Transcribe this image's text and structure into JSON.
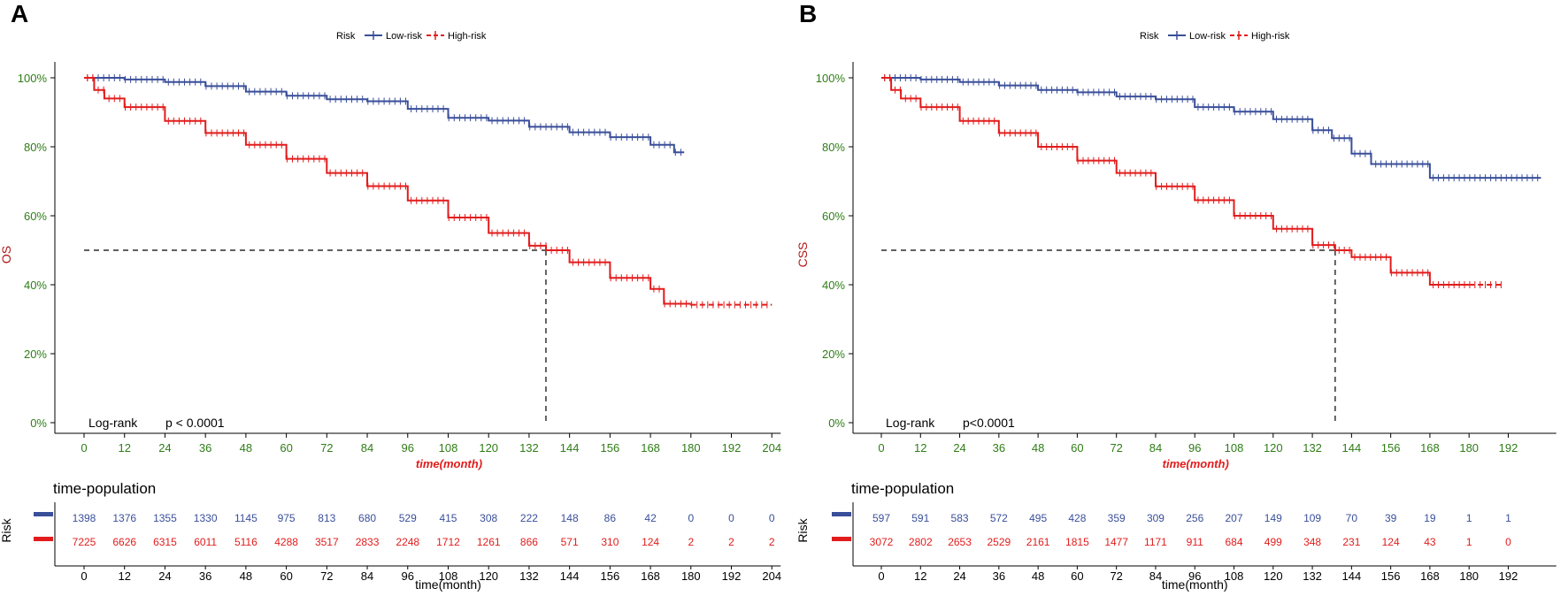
{
  "chart_data": [
    {
      "type": "line",
      "panel_label": "A",
      "legend_title": "Risk",
      "legend": [
        "Low-risk",
        "High-risk"
      ],
      "ylabel": "OS",
      "xlabel": "time(month)",
      "x_ticks": [
        0,
        12,
        24,
        36,
        48,
        60,
        72,
        84,
        96,
        108,
        120,
        132,
        144,
        156,
        168,
        180,
        192,
        204
      ],
      "y_ticks": [
        "0%",
        "20%",
        "40%",
        "60%",
        "80%",
        "100%"
      ],
      "xlim": [
        0,
        204
      ],
      "ylim": [
        0,
        100
      ],
      "median_time": 137,
      "annotation": {
        "test": "Log-rank",
        "p": "p < 0.0001"
      },
      "series": [
        {
          "name": "Low-risk",
          "color": "#3a4f9a",
          "x": [
            0,
            12,
            24,
            36,
            48,
            60,
            72,
            84,
            96,
            108,
            120,
            132,
            144,
            156,
            168,
            175,
            178
          ],
          "y": [
            100,
            99.5,
            98.8,
            97.6,
            96,
            94.8,
            93.8,
            93.2,
            91,
            88.4,
            87.6,
            85.8,
            84.2,
            82.8,
            80.6,
            78.4,
            78.4
          ]
        },
        {
          "name": "High-risk",
          "color": "#e21c1c",
          "x": [
            0,
            3,
            6,
            12,
            24,
            36,
            48,
            60,
            72,
            84,
            96,
            108,
            120,
            132,
            137,
            144,
            156,
            168,
            172,
            180,
            204
          ],
          "y": [
            100,
            96.5,
            94,
            91.5,
            87.5,
            84,
            80.6,
            76.5,
            72.4,
            68.6,
            64.4,
            59.5,
            55,
            51.3,
            50,
            46.5,
            42,
            38.8,
            34.5,
            34.2,
            34.2
          ]
        }
      ],
      "risk_table": {
        "title": "time-population",
        "ylabel": "Risk",
        "xlabel": "time(month)",
        "times": [
          0,
          12,
          24,
          36,
          48,
          60,
          72,
          84,
          96,
          108,
          120,
          132,
          144,
          156,
          168,
          180,
          192,
          204
        ],
        "low": [
          "1398",
          "1376",
          "1355",
          "1330",
          "1145",
          "975",
          "813",
          "680",
          "529",
          "415",
          "308",
          "222",
          "148",
          "86",
          "42",
          "0",
          "0",
          "0"
        ],
        "high": [
          "7225",
          "6626",
          "6315",
          "6011",
          "5116",
          "4288",
          "3517",
          "2833",
          "2248",
          "1712",
          "1261",
          "866",
          "571",
          "310",
          "124",
          "2",
          "2",
          "2"
        ]
      }
    },
    {
      "type": "line",
      "panel_label": "B",
      "legend_title": "Risk",
      "legend": [
        "Low-risk",
        "High-risk"
      ],
      "ylabel": "CSS",
      "xlabel": "time(month)",
      "x_ticks": [
        0,
        12,
        24,
        36,
        48,
        60,
        72,
        84,
        96,
        108,
        120,
        132,
        144,
        156,
        168,
        180,
        192
      ],
      "y_ticks": [
        "0%",
        "20%",
        "40%",
        "60%",
        "80%",
        "100%"
      ],
      "xlim": [
        0,
        204
      ],
      "ylim": [
        0,
        100
      ],
      "median_time": 139,
      "annotation": {
        "test": "Log-rank",
        "p": "p<0.0001"
      },
      "series": [
        {
          "name": "Low-risk",
          "color": "#3a4f9a",
          "x": [
            0,
            12,
            24,
            36,
            48,
            60,
            72,
            84,
            96,
            108,
            120,
            126,
            132,
            138,
            144,
            150,
            156,
            168,
            180,
            202
          ],
          "y": [
            100,
            99.5,
            98.8,
            97.8,
            96.5,
            95.8,
            94.6,
            93.8,
            91.5,
            90.2,
            88,
            88,
            84.8,
            82.5,
            78,
            75,
            75,
            71,
            71,
            71
          ]
        },
        {
          "name": "High-risk",
          "color": "#e21c1c",
          "x": [
            0,
            3,
            6,
            12,
            24,
            36,
            48,
            60,
            72,
            84,
            96,
            108,
            120,
            132,
            139,
            144,
            156,
            168,
            180,
            190
          ],
          "y": [
            100,
            96.5,
            94,
            91.5,
            87.5,
            84,
            80,
            76,
            72.4,
            68.5,
            64.5,
            60,
            56.2,
            51.5,
            50,
            48,
            43.5,
            40,
            40,
            40
          ]
        }
      ],
      "risk_table": {
        "title": "time-population",
        "ylabel": "Risk",
        "xlabel": "time(month)",
        "times": [
          0,
          12,
          24,
          36,
          48,
          60,
          72,
          84,
          96,
          108,
          120,
          132,
          144,
          156,
          168,
          180,
          192
        ],
        "low": [
          "597",
          "591",
          "583",
          "572",
          "495",
          "428",
          "359",
          "309",
          "256",
          "207",
          "149",
          "109",
          "70",
          "39",
          "19",
          "1",
          "1"
        ],
        "high": [
          "3072",
          "2802",
          "2653",
          "2529",
          "2161",
          "1815",
          "1477",
          "1171",
          "911",
          "684",
          "499",
          "348",
          "231",
          "124",
          "43",
          "1",
          "0"
        ]
      }
    }
  ]
}
